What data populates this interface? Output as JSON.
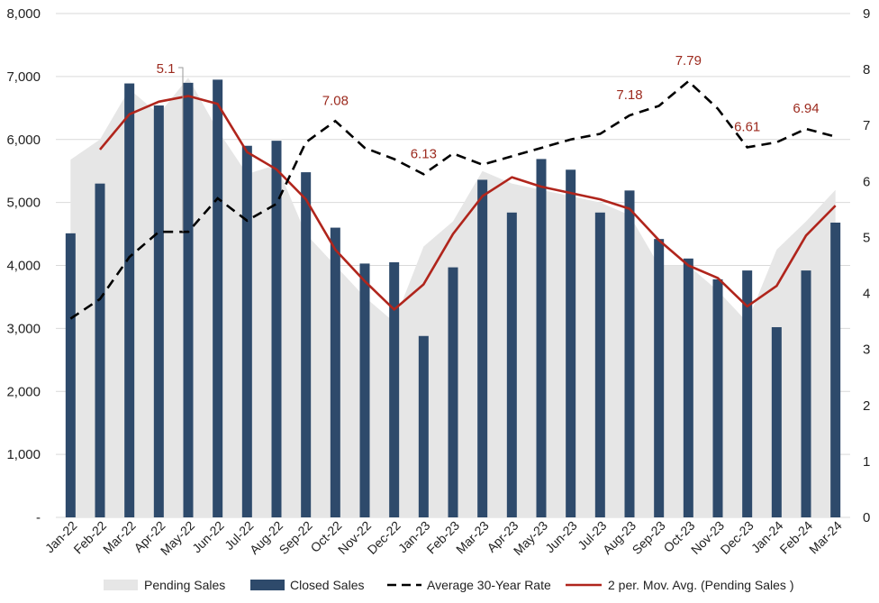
{
  "chart_data": {
    "type": "bar",
    "categories": [
      "Jan-22",
      "Feb-22",
      "Mar-22",
      "Apr-22",
      "May-22",
      "Jun-22",
      "Jul-22",
      "Aug-22",
      "Sep-22",
      "Oct-22",
      "Nov-22",
      "Dec-22",
      "Jan-23",
      "Feb-23",
      "Mar-23",
      "Apr-23",
      "May-23",
      "Jun-23",
      "Jul-23",
      "Aug-23",
      "Sep-23",
      "Oct-23",
      "Nov-23",
      "Dec-23",
      "Jan-24",
      "Feb-24",
      "Mar-24"
    ],
    "y_left": {
      "ylim": [
        0,
        8000
      ],
      "ticks": [
        0,
        1000,
        2000,
        3000,
        4000,
        5000,
        6000,
        7000,
        8000
      ],
      "tick_labels": [
        "-",
        "1,000",
        "2,000",
        "3,000",
        "4,000",
        "5,000",
        "6,000",
        "7,000",
        "8,000"
      ]
    },
    "y_right": {
      "ylim": [
        0,
        9
      ],
      "ticks": [
        0,
        1,
        2,
        3,
        4,
        5,
        6,
        7,
        8,
        9
      ],
      "tick_labels": [
        "0",
        "1",
        "2",
        "3",
        "4",
        "5",
        "6",
        "7",
        "8",
        "9"
      ]
    },
    "series": [
      {
        "name": "Pending Sales",
        "type": "area",
        "axis": "left",
        "color": "#e6e6e6",
        "values": [
          5680,
          6000,
          6800,
          6400,
          6980,
          6150,
          5450,
          5600,
          4500,
          4000,
          3500,
          3100,
          4300,
          4700,
          5500,
          5300,
          5200,
          5100,
          5000,
          4800,
          4000,
          4000,
          3600,
          3100,
          4250,
          4700,
          5200
        ]
      },
      {
        "name": "Closed Sales",
        "type": "bar",
        "axis": "left",
        "color": "#2e4a6b",
        "values": [
          4510,
          5300,
          6890,
          6540,
          6900,
          6950,
          5900,
          5980,
          5480,
          4600,
          4030,
          4050,
          2880,
          3970,
          5360,
          4840,
          5690,
          5520,
          4840,
          5190,
          4420,
          4110,
          3780,
          3920,
          3020,
          3920,
          4680
        ]
      },
      {
        "name": "Average 30-Year Rate",
        "type": "line",
        "axis": "right",
        "color": "#000000",
        "style": "dashed",
        "values": [
          3.55,
          3.9,
          4.65,
          5.1,
          5.1,
          5.7,
          5.3,
          5.6,
          6.7,
          7.08,
          6.6,
          6.4,
          6.13,
          6.5,
          6.3,
          6.45,
          6.6,
          6.75,
          6.85,
          7.18,
          7.35,
          7.79,
          7.3,
          6.61,
          6.7,
          6.94,
          6.8
        ]
      },
      {
        "name": "2 per. Mov. Avg. (Pending Sales )",
        "type": "line",
        "axis": "right_of_left_scale",
        "color": "#b0251c",
        "values": [
          null,
          5840,
          6400,
          6600,
          6690,
          6565,
          5800,
          5525,
          5050,
          4250,
          3750,
          3300,
          3700,
          4500,
          5100,
          5400,
          5250,
          5150,
          5050,
          4900,
          4400,
          4000,
          3800,
          3350,
          3675,
          4475,
          4950
        ]
      }
    ],
    "annotations": [
      {
        "text": "5.1",
        "index": 4,
        "series": "Average 30-Year Rate"
      },
      {
        "text": "7.08",
        "index": 9,
        "series": "Average 30-Year Rate"
      },
      {
        "text": "6.13",
        "index": 12,
        "series": "Average 30-Year Rate"
      },
      {
        "text": "7.18",
        "index": 19,
        "series": "Average 30-Year Rate"
      },
      {
        "text": "7.79",
        "index": 21,
        "series": "Average 30-Year Rate"
      },
      {
        "text": "6.61",
        "index": 23,
        "series": "Average 30-Year Rate"
      },
      {
        "text": "6.94",
        "index": 25,
        "series": "Average 30-Year Rate"
      }
    ],
    "legend": {
      "position": "bottom",
      "items": [
        "Pending Sales",
        "Closed Sales",
        "Average 30-Year Rate",
        "2 per. Mov. Avg. (Pending Sales )"
      ]
    },
    "grid": true
  }
}
